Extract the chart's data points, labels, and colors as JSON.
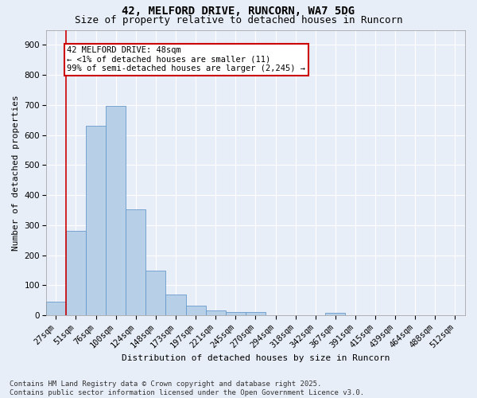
{
  "title_line1": "42, MELFORD DRIVE, RUNCORN, WA7 5DG",
  "title_line2": "Size of property relative to detached houses in Runcorn",
  "xlabel": "Distribution of detached houses by size in Runcorn",
  "ylabel": "Number of detached properties",
  "categories": [
    "27sqm",
    "51sqm",
    "76sqm",
    "100sqm",
    "124sqm",
    "148sqm",
    "173sqm",
    "197sqm",
    "221sqm",
    "245sqm",
    "270sqm",
    "294sqm",
    "318sqm",
    "342sqm",
    "367sqm",
    "391sqm",
    "415sqm",
    "439sqm",
    "464sqm",
    "488sqm",
    "512sqm"
  ],
  "values": [
    45,
    282,
    632,
    697,
    352,
    148,
    68,
    32,
    17,
    10,
    10,
    0,
    0,
    0,
    8,
    0,
    0,
    0,
    0,
    0,
    0
  ],
  "bar_color": "#b8cfe8",
  "bar_edge_color": "#6699cc",
  "highlight_line_color": "#cc0000",
  "annotation_line1": "42 MELFORD DRIVE: 48sqm",
  "annotation_line2": "← <1% of detached houses are smaller (11)",
  "annotation_line3": "99% of semi-detached houses are larger (2,245) →",
  "annotation_box_color": "#ffffff",
  "annotation_box_edge_color": "#cc0000",
  "ylim": [
    0,
    950
  ],
  "yticks": [
    0,
    100,
    200,
    300,
    400,
    500,
    600,
    700,
    800,
    900
  ],
  "footer_line1": "Contains HM Land Registry data © Crown copyright and database right 2025.",
  "footer_line2": "Contains public sector information licensed under the Open Government Licence v3.0.",
  "background_color": "#e8eef8",
  "grid_color": "#ffffff",
  "title_fontsize": 10,
  "subtitle_fontsize": 9,
  "axis_label_fontsize": 8,
  "tick_fontsize": 7.5,
  "annotation_fontsize": 7.5,
  "footer_fontsize": 6.5
}
